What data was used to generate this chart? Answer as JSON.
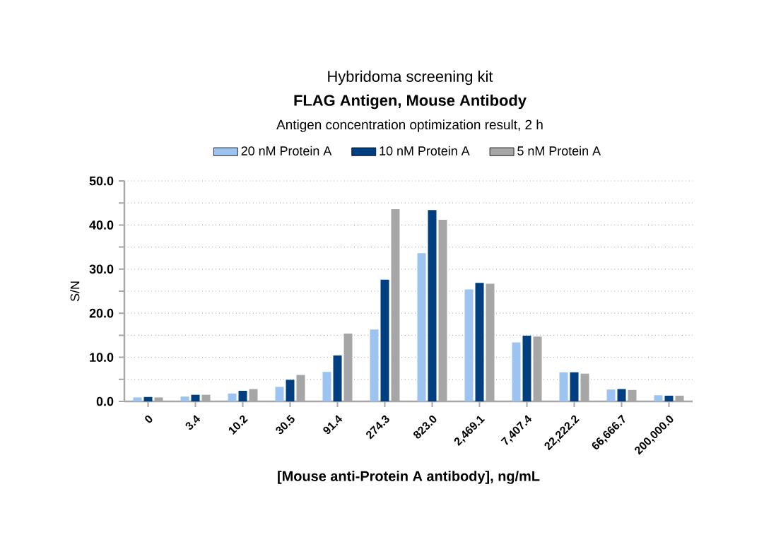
{
  "chart_data": {
    "type": "bar",
    "title": "FLAG Antigen, Mouse Antibody",
    "subtitle": "Antigen concentration optimization result, 2 h",
    "annotations": [
      "Hybridoma screening kit"
    ],
    "xlabel": "[Mouse anti-Protein A antibody], ng/mL",
    "ylabel": "S/N",
    "categories": [
      "0",
      "3.4",
      "10.2",
      "30.5",
      "91.4",
      "274.3",
      "823.0",
      "2,469.1",
      "7,407.4",
      "22,222.2",
      "66,666.7",
      "200,000.0"
    ],
    "series": [
      {
        "name": "20 nM Protein A",
        "color": "#9dc3f0",
        "values": [
          0.9,
          1.1,
          1.8,
          3.3,
          6.7,
          16.3,
          33.6,
          25.4,
          13.4,
          6.6,
          2.7,
          1.4
        ]
      },
      {
        "name": "10 nM Protein A",
        "color": "#003f7f",
        "values": [
          1.0,
          1.5,
          2.4,
          4.9,
          10.4,
          27.6,
          43.4,
          26.9,
          14.9,
          6.6,
          2.8,
          1.3
        ]
      },
      {
        "name": "5 nM Protein A",
        "color": "#a6a6a6",
        "values": [
          0.9,
          1.5,
          2.8,
          6.0,
          15.4,
          43.6,
          41.2,
          26.7,
          14.7,
          6.3,
          2.6,
          1.3
        ]
      }
    ],
    "ylim": [
      0,
      50
    ],
    "yticks": [
      {
        "value": 0,
        "label": "0.0"
      },
      {
        "value": 5,
        "label": null
      },
      {
        "value": 10,
        "label": "10.0"
      },
      {
        "value": 15,
        "label": null
      },
      {
        "value": 20,
        "label": "20.0"
      },
      {
        "value": 25,
        "label": null
      },
      {
        "value": 30,
        "label": "30.0"
      },
      {
        "value": 35,
        "label": null
      },
      {
        "value": 40,
        "label": "40.0"
      },
      {
        "value": 45,
        "label": null
      },
      {
        "value": 50,
        "label": "50.0"
      }
    ],
    "grid": "y",
    "legend": "top"
  }
}
